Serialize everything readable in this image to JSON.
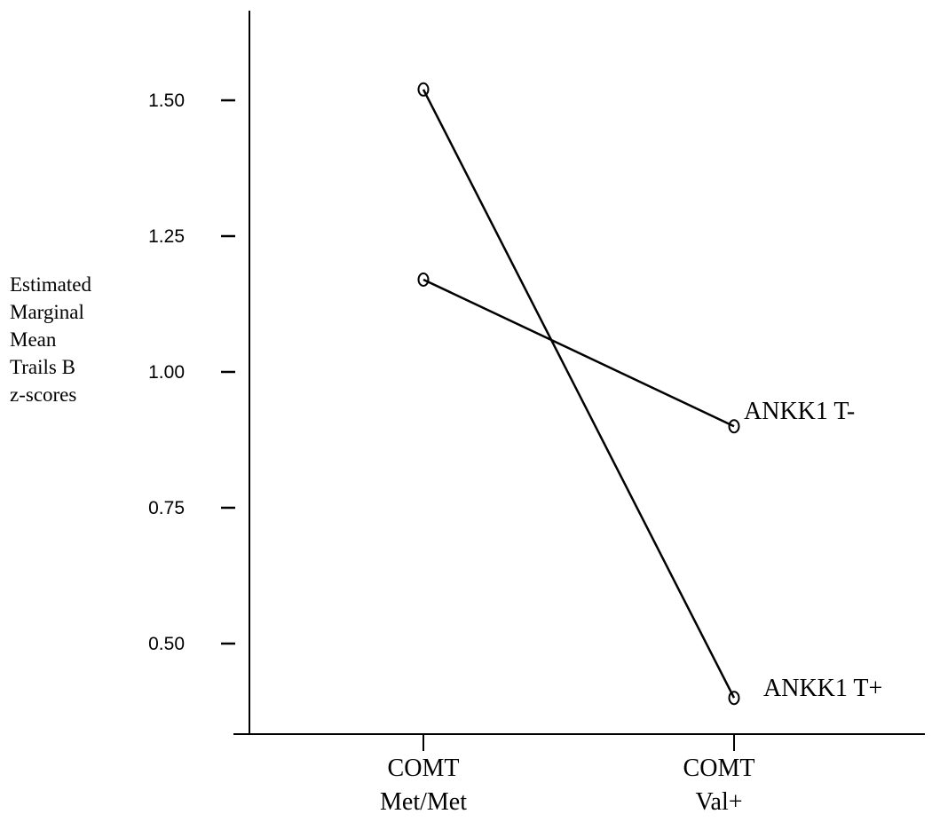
{
  "chart_data": {
    "type": "line",
    "title": "",
    "xlabel": "",
    "ylabel_lines": [
      "Estimated",
      "Marginal",
      "Mean",
      "Trails B",
      "z-scores"
    ],
    "categories": [
      {
        "lines": [
          "COMT",
          "Met/Met"
        ]
      },
      {
        "lines": [
          "COMT",
          "Val+"
        ]
      }
    ],
    "yticks": [
      "0.50",
      "0.75",
      "1.00",
      "1.25",
      "1.50"
    ],
    "ylim": [
      0.34,
      1.66
    ],
    "grid": false,
    "legend": "none",
    "line_color": "#000000",
    "series": [
      {
        "name": "ANKK1 T-",
        "values": [
          1.17,
          0.9
        ]
      },
      {
        "name": "ANKK1 T+",
        "values": [
          1.52,
          0.4
        ]
      }
    ]
  }
}
